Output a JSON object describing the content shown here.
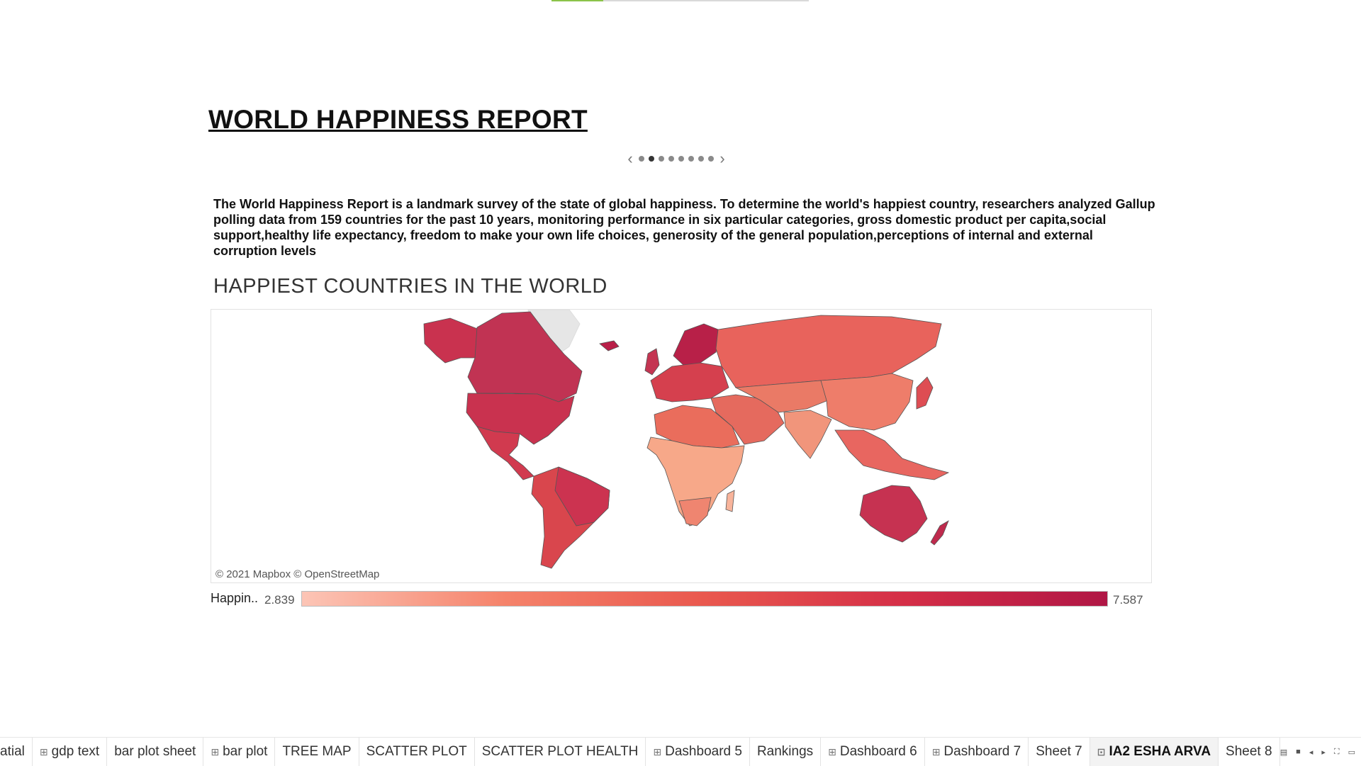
{
  "story": {
    "title": "WORLD HAPPINESS REPORT",
    "nav": {
      "prev_icon": "chevron-left-icon",
      "next_icon": "chevron-right-icon",
      "page_count": 8,
      "current_page": 2
    },
    "intro": "The World Happiness Report is a landmark survey of the state of global happiness. To determine the world's happiest country, researchers analyzed Gallup polling data from 159 countries for the past 10 years, monitoring performance in six particular categories, gross domestic product per capita,social support,healthy life expectancy, freedom to make your own life choices, generosity of the general population,perceptions of internal and external corruption levels"
  },
  "map": {
    "title": "HAPPIEST COUNTRIES IN THE WORLD",
    "attribution": "© 2021 Mapbox © OpenStreetMap",
    "colors": {
      "no_data": "#e6e6e6",
      "border": "#555555"
    }
  },
  "legend": {
    "label": "Happin..",
    "min": "2.839",
    "max": "7.587",
    "gradient": [
      "#fcc5b6",
      "#f5836b",
      "#e9584e",
      "#d42e47",
      "#b01645"
    ]
  },
  "tabs": [
    {
      "label": "atial",
      "icon": ""
    },
    {
      "label": "gdp text",
      "icon": "grid-icon"
    },
    {
      "label": "bar plot sheet",
      "icon": ""
    },
    {
      "label": "bar plot",
      "icon": "grid-icon"
    },
    {
      "label": "TREE MAP",
      "icon": ""
    },
    {
      "label": "SCATTER PLOT",
      "icon": ""
    },
    {
      "label": "SCATTER PLOT HEALTH",
      "icon": ""
    },
    {
      "label": "Dashboard 5",
      "icon": "grid-icon"
    },
    {
      "label": "Rankings",
      "icon": ""
    },
    {
      "label": "Dashboard 6",
      "icon": "grid-icon"
    },
    {
      "label": "Dashboard 7",
      "icon": "grid-icon"
    },
    {
      "label": "Sheet 7",
      "icon": ""
    },
    {
      "label": "IA2 ESHA ARVA",
      "icon": "story-icon",
      "active": true
    },
    {
      "label": "Sheet 8",
      "icon": ""
    }
  ],
  "tab_controls": [
    "list-view-icon",
    "grid-view-icon",
    "scroll-left-icon",
    "scroll-right-icon",
    "fullscreen-icon",
    "present-icon"
  ]
}
